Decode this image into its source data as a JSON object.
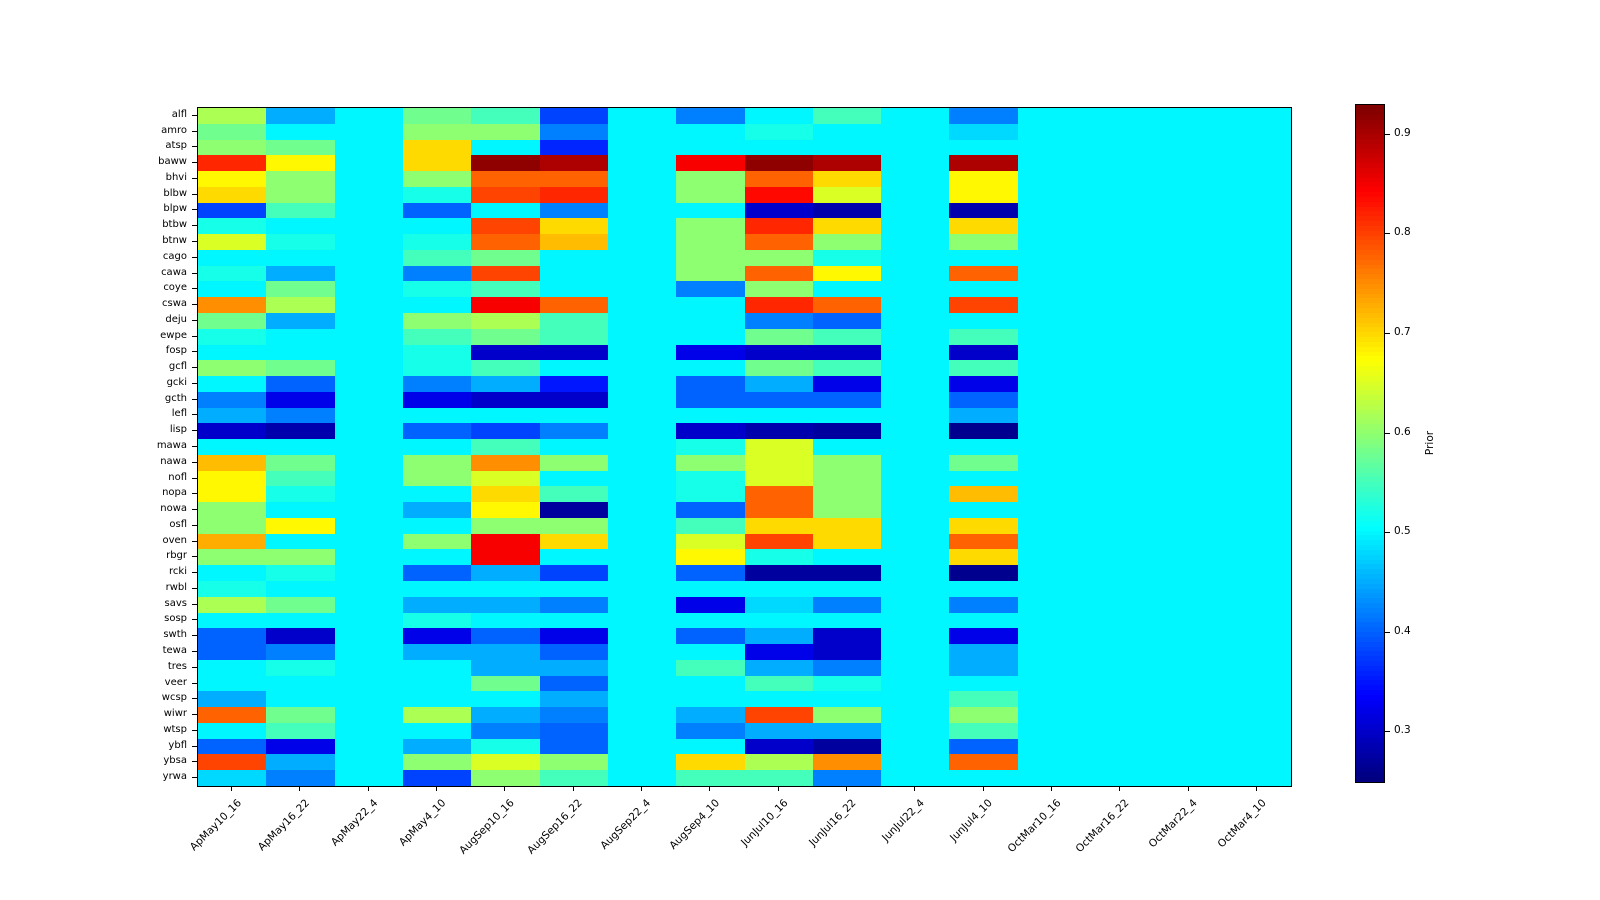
{
  "chart_data": {
    "type": "heatmap",
    "colormap": "jet",
    "vmin": 0.25,
    "vmax": 0.93,
    "colorbar_label": "Prior",
    "colorbar_ticks": [
      0.3,
      0.4,
      0.5,
      0.6,
      0.7,
      0.8,
      0.9
    ],
    "grid": false,
    "x_labels": [
      "ApMay10_16",
      "ApMay16_22",
      "ApMay22_4",
      "ApMay4_10",
      "AugSep10_16",
      "AugSep16_22",
      "AugSep22_4",
      "AugSep4_10",
      "JunJul10_16",
      "JunJul16_22",
      "JunJul22_4",
      "JunJul4_10",
      "OctMar10_16",
      "OctMar16_22",
      "OctMar22_4",
      "OctMar4_10"
    ],
    "y_labels": [
      "alfl",
      "amro",
      "atsp",
      "baww",
      "bhvi",
      "blbw",
      "blpw",
      "btbw",
      "btnw",
      "cago",
      "cawa",
      "coye",
      "cswa",
      "deju",
      "ewpe",
      "fosp",
      "gcfl",
      "gcki",
      "gcth",
      "lefl",
      "lisp",
      "mawa",
      "nawa",
      "nofl",
      "nopa",
      "nowa",
      "osfl",
      "oven",
      "rbgr",
      "rcki",
      "rwbl",
      "savs",
      "sosp",
      "swth",
      "tewa",
      "tres",
      "veer",
      "wcsp",
      "wiwr",
      "wtsp",
      "ybfl",
      "ybsa",
      "yrwa"
    ],
    "values": [
      [
        0.62,
        0.45,
        0.5,
        0.58,
        0.55,
        0.38,
        0.5,
        0.42,
        0.5,
        0.55,
        0.5,
        0.42,
        0.5,
        0.5,
        0.5,
        0.5
      ],
      [
        0.58,
        0.5,
        0.5,
        0.6,
        0.6,
        0.42,
        0.5,
        0.5,
        0.52,
        0.5,
        0.5,
        0.48,
        0.5,
        0.5,
        0.5,
        0.5
      ],
      [
        0.6,
        0.58,
        0.5,
        0.7,
        0.5,
        0.36,
        0.5,
        0.5,
        0.5,
        0.5,
        0.5,
        0.5,
        0.5,
        0.5,
        0.5,
        0.5
      ],
      [
        0.82,
        0.68,
        0.5,
        0.7,
        0.92,
        0.9,
        0.5,
        0.85,
        0.92,
        0.9,
        0.5,
        0.9,
        0.5,
        0.5,
        0.5,
        0.5
      ],
      [
        0.68,
        0.6,
        0.5,
        0.6,
        0.78,
        0.78,
        0.5,
        0.6,
        0.78,
        0.7,
        0.5,
        0.68,
        0.5,
        0.5,
        0.5,
        0.5
      ],
      [
        0.7,
        0.6,
        0.5,
        0.52,
        0.8,
        0.82,
        0.5,
        0.6,
        0.84,
        0.65,
        0.5,
        0.68,
        0.5,
        0.5,
        0.5,
        0.5
      ],
      [
        0.38,
        0.55,
        0.5,
        0.4,
        0.5,
        0.42,
        0.5,
        0.5,
        0.3,
        0.28,
        0.5,
        0.28,
        0.5,
        0.5,
        0.5,
        0.5
      ],
      [
        0.52,
        0.5,
        0.5,
        0.5,
        0.8,
        0.7,
        0.5,
        0.6,
        0.82,
        0.7,
        0.5,
        0.7,
        0.5,
        0.5,
        0.5,
        0.5
      ],
      [
        0.65,
        0.52,
        0.5,
        0.52,
        0.78,
        0.72,
        0.5,
        0.6,
        0.78,
        0.6,
        0.5,
        0.6,
        0.5,
        0.5,
        0.5,
        0.5
      ],
      [
        0.5,
        0.5,
        0.5,
        0.55,
        0.58,
        0.5,
        0.5,
        0.6,
        0.6,
        0.52,
        0.5,
        0.5,
        0.5,
        0.5,
        0.5,
        0.5
      ],
      [
        0.52,
        0.45,
        0.5,
        0.42,
        0.8,
        0.5,
        0.5,
        0.6,
        0.78,
        0.68,
        0.5,
        0.78,
        0.5,
        0.5,
        0.5,
        0.5
      ],
      [
        0.5,
        0.58,
        0.5,
        0.52,
        0.55,
        0.5,
        0.5,
        0.42,
        0.6,
        0.5,
        0.5,
        0.5,
        0.5,
        0.5,
        0.5,
        0.5
      ],
      [
        0.75,
        0.62,
        0.5,
        0.5,
        0.85,
        0.78,
        0.5,
        0.5,
        0.82,
        0.78,
        0.5,
        0.8,
        0.5,
        0.5,
        0.5,
        0.5
      ],
      [
        0.58,
        0.45,
        0.5,
        0.6,
        0.62,
        0.55,
        0.5,
        0.5,
        0.42,
        0.4,
        0.5,
        0.5,
        0.5,
        0.5,
        0.5,
        0.5
      ],
      [
        0.52,
        0.5,
        0.5,
        0.55,
        0.58,
        0.55,
        0.5,
        0.5,
        0.58,
        0.55,
        0.5,
        0.55,
        0.5,
        0.5,
        0.5,
        0.5
      ],
      [
        0.5,
        0.5,
        0.5,
        0.52,
        0.3,
        0.3,
        0.5,
        0.32,
        0.3,
        0.3,
        0.5,
        0.3,
        0.5,
        0.5,
        0.5,
        0.5
      ],
      [
        0.6,
        0.58,
        0.5,
        0.52,
        0.55,
        0.5,
        0.5,
        0.5,
        0.58,
        0.55,
        0.5,
        0.55,
        0.5,
        0.5,
        0.5,
        0.5
      ],
      [
        0.5,
        0.4,
        0.5,
        0.42,
        0.45,
        0.35,
        0.5,
        0.4,
        0.45,
        0.32,
        0.5,
        0.32,
        0.5,
        0.5,
        0.5,
        0.5
      ],
      [
        0.42,
        0.32,
        0.5,
        0.32,
        0.3,
        0.3,
        0.5,
        0.4,
        0.4,
        0.4,
        0.5,
        0.4,
        0.5,
        0.5,
        0.5,
        0.5
      ],
      [
        0.45,
        0.42,
        0.5,
        0.5,
        0.5,
        0.5,
        0.5,
        0.5,
        0.5,
        0.5,
        0.5,
        0.45,
        0.5,
        0.5,
        0.5,
        0.5
      ],
      [
        0.3,
        0.28,
        0.5,
        0.4,
        0.38,
        0.42,
        0.5,
        0.3,
        0.28,
        0.27,
        0.5,
        0.26,
        0.5,
        0.5,
        0.5,
        0.5
      ],
      [
        0.5,
        0.5,
        0.5,
        0.5,
        0.55,
        0.5,
        0.5,
        0.52,
        0.65,
        0.5,
        0.5,
        0.5,
        0.5,
        0.5,
        0.5,
        0.5
      ],
      [
        0.72,
        0.58,
        0.5,
        0.6,
        0.75,
        0.6,
        0.5,
        0.6,
        0.65,
        0.6,
        0.5,
        0.58,
        0.5,
        0.5,
        0.5,
        0.5
      ],
      [
        0.68,
        0.55,
        0.5,
        0.6,
        0.65,
        0.5,
        0.5,
        0.52,
        0.65,
        0.6,
        0.5,
        0.5,
        0.5,
        0.5,
        0.5,
        0.5
      ],
      [
        0.68,
        0.52,
        0.5,
        0.5,
        0.7,
        0.55,
        0.5,
        0.52,
        0.78,
        0.6,
        0.5,
        0.72,
        0.5,
        0.5,
        0.5,
        0.5
      ],
      [
        0.6,
        0.5,
        0.5,
        0.45,
        0.68,
        0.27,
        0.5,
        0.4,
        0.78,
        0.6,
        0.5,
        0.5,
        0.5,
        0.5,
        0.5,
        0.5
      ],
      [
        0.6,
        0.68,
        0.5,
        0.5,
        0.6,
        0.6,
        0.5,
        0.55,
        0.7,
        0.7,
        0.5,
        0.7,
        0.5,
        0.5,
        0.5,
        0.5
      ],
      [
        0.73,
        0.5,
        0.5,
        0.6,
        0.85,
        0.7,
        0.5,
        0.65,
        0.8,
        0.7,
        0.5,
        0.78,
        0.5,
        0.5,
        0.5,
        0.5
      ],
      [
        0.6,
        0.6,
        0.5,
        0.5,
        0.85,
        0.5,
        0.5,
        0.68,
        0.52,
        0.5,
        0.5,
        0.7,
        0.5,
        0.5,
        0.5,
        0.5
      ],
      [
        0.5,
        0.52,
        0.5,
        0.4,
        0.45,
        0.38,
        0.5,
        0.4,
        0.27,
        0.27,
        0.5,
        0.26,
        0.5,
        0.5,
        0.5,
        0.5
      ],
      [
        0.52,
        0.5,
        0.5,
        0.5,
        0.5,
        0.5,
        0.5,
        0.5,
        0.5,
        0.5,
        0.5,
        0.5,
        0.5,
        0.5,
        0.5,
        0.5
      ],
      [
        0.62,
        0.58,
        0.5,
        0.45,
        0.45,
        0.42,
        0.5,
        0.32,
        0.48,
        0.42,
        0.5,
        0.42,
        0.5,
        0.5,
        0.5,
        0.5
      ],
      [
        0.5,
        0.5,
        0.5,
        0.52,
        0.5,
        0.5,
        0.5,
        0.5,
        0.5,
        0.5,
        0.5,
        0.5,
        0.5,
        0.5,
        0.5,
        0.5
      ],
      [
        0.4,
        0.3,
        0.5,
        0.32,
        0.4,
        0.32,
        0.5,
        0.4,
        0.45,
        0.3,
        0.5,
        0.32,
        0.5,
        0.5,
        0.5,
        0.5
      ],
      [
        0.4,
        0.42,
        0.5,
        0.45,
        0.45,
        0.4,
        0.5,
        0.5,
        0.32,
        0.3,
        0.5,
        0.45,
        0.5,
        0.5,
        0.5,
        0.5
      ],
      [
        0.5,
        0.52,
        0.5,
        0.5,
        0.45,
        0.45,
        0.5,
        0.55,
        0.45,
        0.42,
        0.5,
        0.45,
        0.5,
        0.5,
        0.5,
        0.5
      ],
      [
        0.5,
        0.5,
        0.5,
        0.5,
        0.58,
        0.4,
        0.5,
        0.5,
        0.55,
        0.52,
        0.5,
        0.5,
        0.5,
        0.5,
        0.5,
        0.5
      ],
      [
        0.45,
        0.5,
        0.5,
        0.5,
        0.5,
        0.45,
        0.5,
        0.5,
        0.5,
        0.5,
        0.5,
        0.55,
        0.5,
        0.5,
        0.5,
        0.5
      ],
      [
        0.78,
        0.58,
        0.5,
        0.62,
        0.45,
        0.42,
        0.5,
        0.45,
        0.8,
        0.6,
        0.5,
        0.6,
        0.5,
        0.5,
        0.5,
        0.5
      ],
      [
        0.5,
        0.55,
        0.5,
        0.5,
        0.42,
        0.4,
        0.5,
        0.42,
        0.45,
        0.45,
        0.5,
        0.55,
        0.5,
        0.5,
        0.5,
        0.5
      ],
      [
        0.4,
        0.32,
        0.5,
        0.45,
        0.52,
        0.4,
        0.5,
        0.5,
        0.3,
        0.27,
        0.5,
        0.4,
        0.5,
        0.5,
        0.5,
        0.5
      ],
      [
        0.8,
        0.45,
        0.5,
        0.6,
        0.65,
        0.6,
        0.5,
        0.7,
        0.62,
        0.75,
        0.5,
        0.78,
        0.5,
        0.5,
        0.5,
        0.5
      ],
      [
        0.48,
        0.42,
        0.5,
        0.38,
        0.6,
        0.55,
        0.5,
        0.55,
        0.55,
        0.42,
        0.5,
        0.5,
        0.5,
        0.5,
        0.5,
        0.5
      ]
    ]
  }
}
